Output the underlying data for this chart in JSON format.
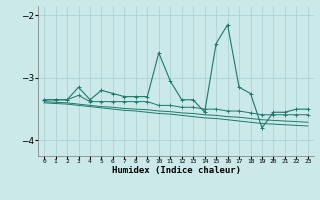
{
  "xlabel": "Humidex (Indice chaleur)",
  "x": [
    0,
    1,
    2,
    3,
    4,
    5,
    6,
    7,
    8,
    9,
    10,
    11,
    12,
    13,
    14,
    15,
    16,
    17,
    18,
    19,
    20,
    21,
    22,
    23
  ],
  "line1": [
    -3.35,
    -3.35,
    -3.35,
    -3.15,
    -3.35,
    -3.2,
    -3.25,
    -3.3,
    -3.3,
    -3.3,
    -2.6,
    -3.05,
    -3.35,
    -3.35,
    -3.55,
    -2.45,
    -2.15,
    -3.15,
    -3.25,
    -3.8,
    -3.55,
    -3.55,
    -3.5,
    -3.5
  ],
  "line2": [
    -3.35,
    -3.35,
    -3.35,
    -3.28,
    -3.38,
    -3.38,
    -3.38,
    -3.38,
    -3.38,
    -3.38,
    -3.44,
    -3.44,
    -3.47,
    -3.47,
    -3.5,
    -3.5,
    -3.53,
    -3.53,
    -3.56,
    -3.59,
    -3.59,
    -3.59,
    -3.59,
    -3.59
  ],
  "line3": [
    -3.38,
    -3.39,
    -3.4,
    -3.42,
    -3.44,
    -3.46,
    -3.47,
    -3.49,
    -3.5,
    -3.51,
    -3.53,
    -3.54,
    -3.56,
    -3.57,
    -3.59,
    -3.6,
    -3.62,
    -3.63,
    -3.65,
    -3.67,
    -3.68,
    -3.69,
    -3.7,
    -3.71
  ],
  "line4": [
    -3.4,
    -3.41,
    -3.42,
    -3.44,
    -3.46,
    -3.48,
    -3.5,
    -3.52,
    -3.53,
    -3.55,
    -3.57,
    -3.58,
    -3.6,
    -3.62,
    -3.64,
    -3.65,
    -3.67,
    -3.69,
    -3.71,
    -3.73,
    -3.74,
    -3.75,
    -3.76,
    -3.77
  ],
  "ylim": [
    -4.25,
    -1.85
  ],
  "yticks": [
    -4,
    -3,
    -2
  ],
  "bg_color": "#cce9e9",
  "line_color": "#1a7a6a",
  "grid_color": "#aed4d4"
}
